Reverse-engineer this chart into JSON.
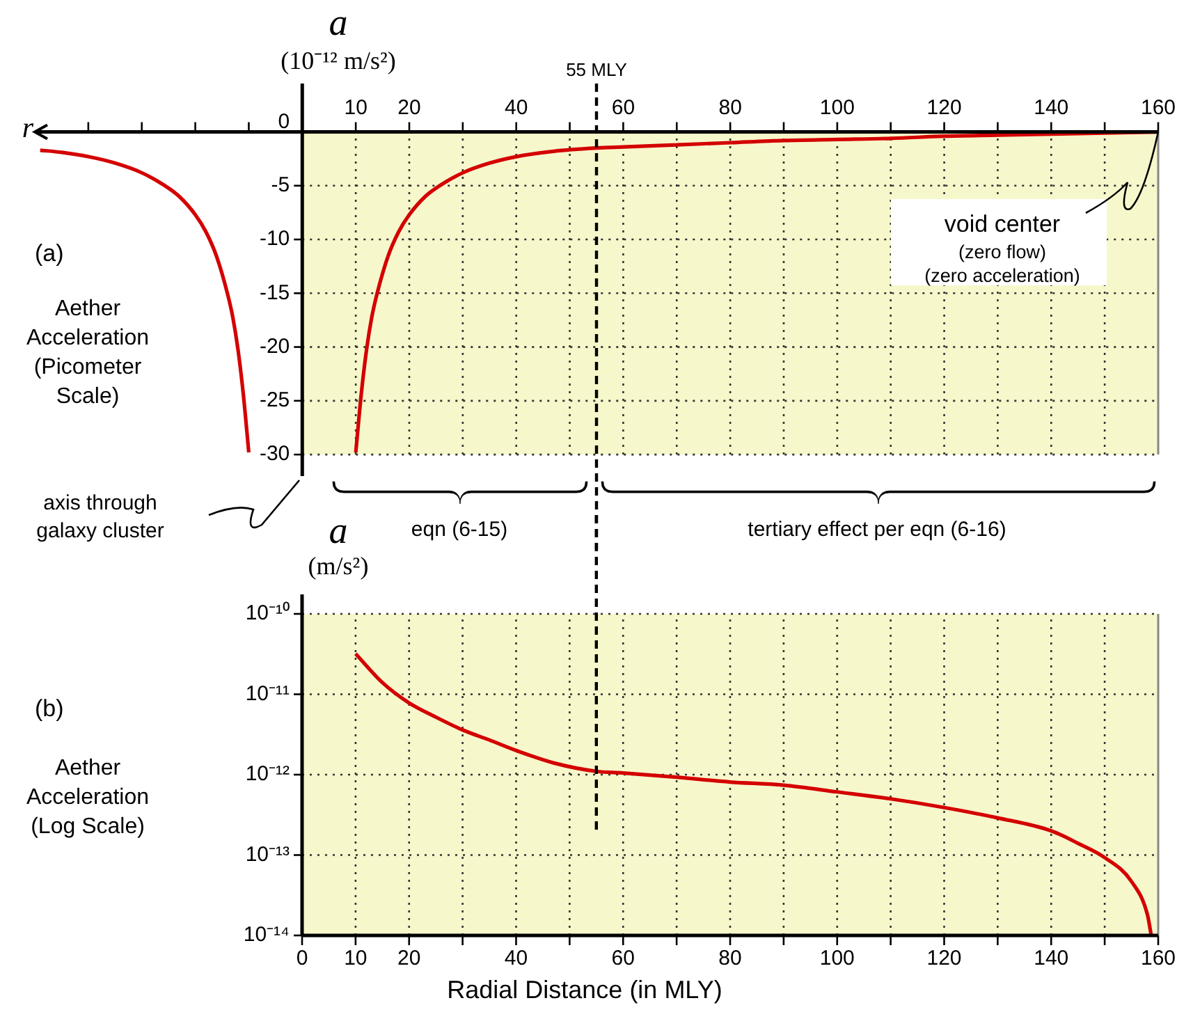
{
  "chart_data": [
    {
      "type": "line",
      "xlabel": "r",
      "ylabel": "a (10⁻¹² m/s²)",
      "xlim": [
        -50,
        160
      ],
      "ylim": [
        -32,
        4.5
      ],
      "xticks": [
        {
          "value": -40,
          "label": null
        },
        {
          "value": -30,
          "label": null
        },
        {
          "value": -20,
          "label": null
        },
        {
          "value": -10,
          "label": null
        },
        10,
        20,
        {
          "value": 30,
          "label": null
        },
        40,
        {
          "value": 50,
          "label": null
        },
        60,
        {
          "value": 70,
          "label": null
        },
        80,
        {
          "value": 90,
          "label": null
        },
        100,
        {
          "value": 110,
          "label": null
        },
        120,
        {
          "value": 130,
          "label": null
        },
        140,
        {
          "value": 150,
          "label": null
        },
        160
      ],
      "yticks": [
        -30,
        -25,
        -20,
        -15,
        -10,
        -5,
        0
      ],
      "grid": true,
      "series": [
        {
          "color": "#d40000",
          "x": [
            10,
            11,
            12,
            13,
            14,
            16,
            18,
            20,
            23,
            26,
            30,
            35,
            40,
            47,
            55,
            60,
            70,
            80,
            90,
            100,
            110,
            120,
            130,
            140,
            150,
            160
          ],
          "values": [
            -29.8,
            -24.5,
            -20.3,
            -17.2,
            -15,
            -11.6,
            -9.3,
            -7.7,
            -6,
            -4.9,
            -3.8,
            -2.9,
            -2.3,
            -1.8,
            -1.5,
            -1.4,
            -1.2,
            -1,
            -0.8,
            -0.7,
            -0.6,
            -0.4,
            -0.3,
            -0.2,
            -0.1,
            0
          ]
        },
        {
          "color": "#d40000",
          "x": [
            -10,
            -11,
            -12,
            -13,
            -14,
            -16,
            -18,
            -20,
            -23,
            -26,
            -30,
            -35,
            -40,
            -45,
            -49
          ],
          "values": [
            -29.8,
            -24.5,
            -20.3,
            -17.2,
            -15,
            -11.6,
            -9.3,
            -7.7,
            -6,
            -4.9,
            -3.8,
            -2.9,
            -2.3,
            -1.9,
            -1.7
          ]
        }
      ],
      "ref_lines": [
        {
          "axis": "x",
          "value": 55,
          "label": "55 MLY",
          "color": "#000000",
          "line_style": "dashed"
        }
      ],
      "bands": [
        {
          "axis": "y",
          "from": -30,
          "to": 0,
          "color": "#f7f7cc"
        }
      ],
      "annotations": [
        "(a)",
        "Aether Acceleration (Picometer Scale)",
        "axis through galaxy cluster",
        "eqn (6-15)",
        "tertiary effect per eqn (6-16)",
        {
          "text": "void center",
          "x": 160,
          "y": 0
        },
        "(zero flow)",
        "(zero acceleration)"
      ]
    },
    {
      "type": "line",
      "xlabel": "Radial Distance (in MLY)",
      "ylabel": "a (m/s²)",
      "log": "y",
      "xlim": [
        0,
        160
      ],
      "ylim": [
        1e-14,
        1e-10
      ],
      "xticks": [
        0,
        10,
        20,
        {
          "value": 30,
          "label": null
        },
        40,
        {
          "value": 50,
          "label": null
        },
        60,
        {
          "value": 70,
          "label": null
        },
        80,
        {
          "value": 90,
          "label": null
        },
        100,
        {
          "value": 110,
          "label": null
        },
        120,
        {
          "value": 130,
          "label": null
        },
        140,
        {
          "value": 150,
          "label": null
        },
        160
      ],
      "yticks": [
        {
          "value": 1e-14,
          "label": "10⁻¹⁴"
        },
        {
          "value": 1e-13,
          "label": "10⁻¹³"
        },
        {
          "value": 1e-12,
          "label": "10⁻¹²"
        },
        {
          "value": 1e-11,
          "label": "10⁻¹¹"
        },
        {
          "value": 1e-10,
          "label": "10⁻¹⁰"
        }
      ],
      "grid": true,
      "series": [
        {
          "color": "#d40000",
          "x": [
            10,
            15,
            20,
            25,
            30,
            35,
            40,
            47,
            55,
            60,
            70,
            80,
            90,
            100,
            110,
            120,
            130,
            140,
            145,
            150,
            155,
            158,
            158.7
          ],
          "values": [
            3.2e-11,
            1.4e-11,
            7.8e-12,
            5.2e-12,
            3.6e-12,
            2.7e-12,
            2e-12,
            1.4e-12,
            1.1e-12,
            1.05e-12,
            9.3e-13,
            8.1e-13,
            7.4e-13,
            6.1e-13,
            5e-13,
            3.9e-13,
            2.9e-13,
            2e-13,
            1.4e-13,
            9.3e-14,
            4.7e-14,
            1.8e-14,
            1e-14
          ]
        }
      ],
      "ref_lines": [
        {
          "axis": "x",
          "value": 55,
          "color": "#000000",
          "line_style": "dashed"
        }
      ],
      "annotations": [
        "(b)",
        "Aether Acceleration (Log Scale)"
      ]
    }
  ]
}
